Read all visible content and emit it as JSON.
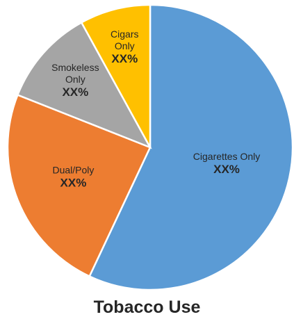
{
  "chart_data": {
    "type": "pie",
    "title": "Tobacco Use",
    "start_angle_deg": 0,
    "direction": "clockwise",
    "slices": [
      {
        "label_lines": [
          "Cigarettes Only"
        ],
        "value_label": "XX%",
        "value": 57,
        "color": "#5B9BD5"
      },
      {
        "label_lines": [
          "Dual/Poly"
        ],
        "value_label": "XX%",
        "value": 24,
        "color": "#ED7D31"
      },
      {
        "label_lines": [
          "Smokeless",
          "Only"
        ],
        "value_label": "XX%",
        "value": 11,
        "color": "#A5A5A5"
      },
      {
        "label_lines": [
          "Cigars",
          "Only"
        ],
        "value_label": "XX%",
        "value": 8,
        "color": "#FFC000"
      }
    ]
  }
}
